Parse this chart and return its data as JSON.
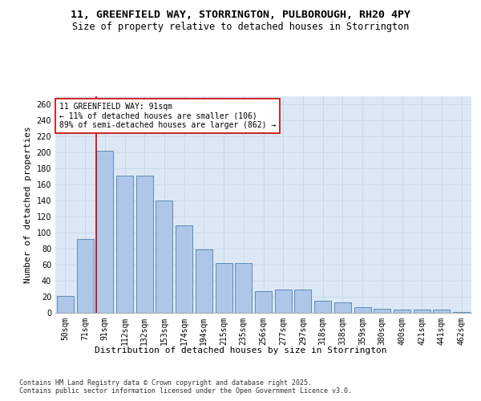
{
  "title_line1": "11, GREENFIELD WAY, STORRINGTON, PULBOROUGH, RH20 4PY",
  "title_line2": "Size of property relative to detached houses in Storrington",
  "xlabel": "Distribution of detached houses by size in Storrington",
  "ylabel": "Number of detached properties",
  "categories": [
    "50sqm",
    "71sqm",
    "91sqm",
    "112sqm",
    "132sqm",
    "153sqm",
    "174sqm",
    "194sqm",
    "215sqm",
    "235sqm",
    "256sqm",
    "277sqm",
    "297sqm",
    "318sqm",
    "338sqm",
    "359sqm",
    "380sqm",
    "400sqm",
    "421sqm",
    "441sqm",
    "462sqm"
  ],
  "values": [
    21,
    92,
    202,
    171,
    171,
    140,
    109,
    79,
    62,
    62,
    27,
    29,
    29,
    15,
    13,
    7,
    5,
    4,
    4,
    4,
    1
  ],
  "bar_color": "#aec6e8",
  "bar_edge_color": "#5b8db8",
  "highlight_index": 2,
  "highlight_line_color": "#cc0000",
  "annotation_text": "11 GREENFIELD WAY: 91sqm\n← 11% of detached houses are smaller (106)\n89% of semi-detached houses are larger (862) →",
  "annotation_box_color": "#ffffff",
  "annotation_box_edge": "#cc0000",
  "ylim": [
    0,
    270
  ],
  "yticks": [
    0,
    20,
    40,
    60,
    80,
    100,
    120,
    140,
    160,
    180,
    200,
    220,
    240,
    260
  ],
  "grid_color": "#c8d8e8",
  "background_color": "#dce8f5",
  "footer_text": "Contains HM Land Registry data © Crown copyright and database right 2025.\nContains public sector information licensed under the Open Government Licence v3.0.",
  "title_fontsize": 9.5,
  "subtitle_fontsize": 8.5,
  "axis_label_fontsize": 8,
  "tick_fontsize": 7,
  "annotation_fontsize": 7,
  "footer_fontsize": 6
}
